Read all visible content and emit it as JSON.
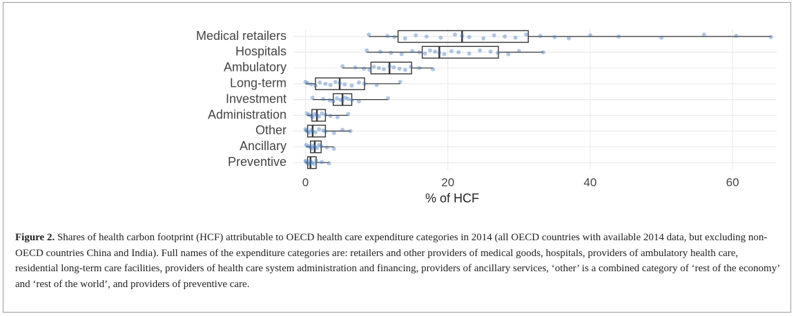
{
  "chart_data": {
    "type": "box",
    "categories": [
      "Medical retailers",
      "Hospitals",
      "Ambulatory",
      "Long-term",
      "Investment",
      "Administration",
      "Other",
      "Ancillary",
      "Preventive"
    ],
    "boxes": [
      {
        "whislo": 8.9,
        "q1": 13.0,
        "med": 22.0,
        "q3": 31.3,
        "whishi": 65.4
      },
      {
        "whislo": 8.6,
        "q1": 16.4,
        "med": 18.8,
        "q3": 27.1,
        "whishi": 33.4
      },
      {
        "whislo": 5.2,
        "q1": 9.2,
        "med": 11.8,
        "q3": 14.9,
        "whishi": 17.9
      },
      {
        "whislo": 0.0,
        "q1": 1.4,
        "med": 4.8,
        "q3": 8.3,
        "whishi": 13.3
      },
      {
        "whislo": 1.0,
        "q1": 3.9,
        "med": 5.2,
        "q3": 6.5,
        "whishi": 11.6
      },
      {
        "whislo": 0.2,
        "q1": 0.9,
        "med": 1.6,
        "q3": 2.8,
        "whishi": 6.0
      },
      {
        "whislo": 0.0,
        "q1": 0.3,
        "med": 1.0,
        "q3": 2.8,
        "whishi": 6.3
      },
      {
        "whislo": 0.1,
        "q1": 0.7,
        "med": 1.3,
        "q3": 2.2,
        "whishi": 4.0
      },
      {
        "whislo": 0.0,
        "q1": 0.3,
        "med": 0.7,
        "q3": 1.5,
        "whishi": 3.3
      }
    ],
    "points": [
      [
        8.9,
        11.5,
        12.5,
        14,
        15.5,
        17,
        19,
        21,
        22,
        23,
        25,
        26.5,
        28,
        29.5,
        31,
        33,
        35,
        37,
        40,
        44,
        50,
        56,
        60.5,
        65.4
      ],
      [
        8.6,
        10.5,
        12,
        13.5,
        15,
        16,
        16.8,
        17.5,
        18.2,
        18.8,
        19.5,
        20.5,
        21.5,
        23,
        24.5,
        26,
        27,
        28.5,
        30,
        33.4
      ],
      [
        5.2,
        7,
        8.2,
        9,
        9.6,
        10.3,
        11,
        11.8,
        12.4,
        13.2,
        14,
        14.8,
        16,
        17.9
      ],
      [
        0.0,
        0.3,
        0.8,
        1.4,
        2,
        2.8,
        3.5,
        4.2,
        4.8,
        5.5,
        6.5,
        7.5,
        8.3,
        10,
        13.3
      ],
      [
        1.0,
        2.5,
        3.4,
        3.9,
        4.4,
        4.9,
        5.2,
        5.6,
        6,
        6.5,
        7.5,
        11.6
      ],
      [
        0.2,
        0.5,
        0.8,
        1,
        1.3,
        1.6,
        1.9,
        2.3,
        2.8,
        3.5,
        4.5,
        6.0
      ],
      [
        0.0,
        0.1,
        0.3,
        0.5,
        0.8,
        1,
        1.4,
        1.9,
        2.5,
        2.8,
        4,
        5.2,
        6.3
      ],
      [
        0.1,
        0.4,
        0.7,
        0.9,
        1.1,
        1.3,
        1.6,
        1.9,
        2.2,
        3,
        4.0
      ],
      [
        0.0,
        0.1,
        0.3,
        0.5,
        0.7,
        0.9,
        1.2,
        1.5,
        2.3,
        3.3
      ]
    ],
    "point_color": "#3d72b8",
    "xlabel": "% of HCF",
    "xlim": [
      -1.7,
      66.2
    ],
    "xticks": [
      0,
      20,
      40,
      60
    ],
    "grid": true
  },
  "caption": {
    "label": "Figure 2.",
    "text": "Shares of health carbon footprint (HCF) attributable to OECD health care expenditure categories in 2014 (all OECD countries with available 2014 data, but excluding non-OECD countries China and India). Full names of the expenditure categories are: retailers and other providers of medical goods, hospitals, providers of ambulatory health care, residential long-term care facilities, providers of health care system administration and financing, providers of ancillary services, ‘other’ is a combined category of ‘rest of the economy’ and ‘rest of the world’, and providers of preventive care."
  }
}
